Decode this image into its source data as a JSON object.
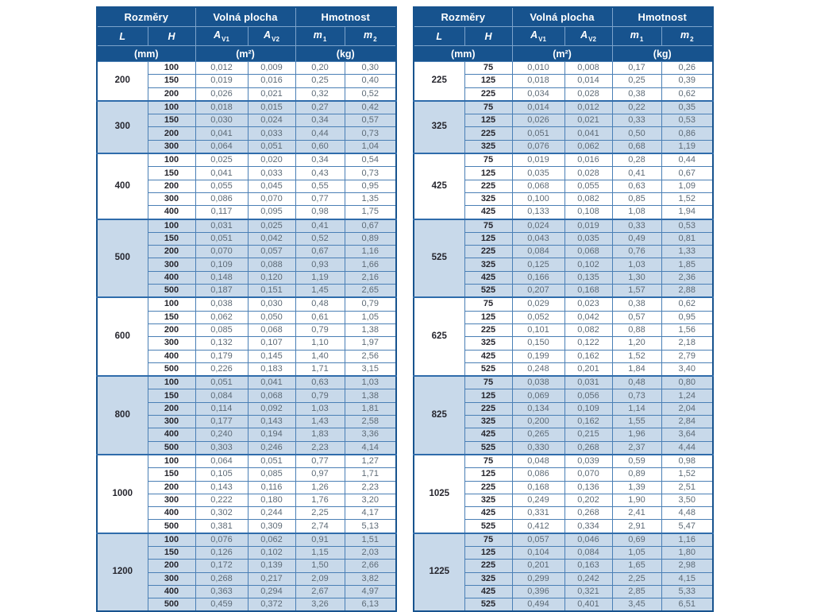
{
  "colors": {
    "page_bg": "#ffffff",
    "header_bg": "#17538e",
    "header_text": "#ffffff",
    "header_divider": "#7ca3cb",
    "row_shaded_bg": "#c8d9ea",
    "cell_border": "#4a7fb5",
    "group_border": "#2f6cab",
    "value_text": "#5d6a76",
    "label_text": "#26262e"
  },
  "header": {
    "groups": [
      {
        "label": "Rozměry",
        "span": 2
      },
      {
        "label": "Volná plocha",
        "span": 2
      },
      {
        "label": "Hmotnost",
        "span": 2
      }
    ],
    "columns": [
      {
        "base": "L",
        "sub": ""
      },
      {
        "base": "H",
        "sub": ""
      },
      {
        "base": "A",
        "sub": "V1"
      },
      {
        "base": "A",
        "sub": "V2"
      },
      {
        "base": "m",
        "sub": "1"
      },
      {
        "base": "m",
        "sub": "2"
      }
    ],
    "units": [
      {
        "label": "(mm)",
        "span": 2
      },
      {
        "label": "(m²)",
        "span": 2
      },
      {
        "label": "(kg)",
        "span": 2
      }
    ]
  },
  "tables": [
    {
      "name": "left",
      "groups": [
        {
          "l": "200",
          "rows": [
            [
              "100",
              "0,012",
              "0,009",
              "0,20",
              "0,30"
            ],
            [
              "150",
              "0,019",
              "0,016",
              "0,25",
              "0,40"
            ],
            [
              "200",
              "0,026",
              "0,021",
              "0,32",
              "0,52"
            ]
          ]
        },
        {
          "l": "300",
          "rows": [
            [
              "100",
              "0,018",
              "0,015",
              "0,27",
              "0,42"
            ],
            [
              "150",
              "0,030",
              "0,024",
              "0,34",
              "0,57"
            ],
            [
              "200",
              "0,041",
              "0,033",
              "0,44",
              "0,73"
            ],
            [
              "300",
              "0,064",
              "0,051",
              "0,60",
              "1,04"
            ]
          ]
        },
        {
          "l": "400",
          "rows": [
            [
              "100",
              "0,025",
              "0,020",
              "0,34",
              "0,54"
            ],
            [
              "150",
              "0,041",
              "0,033",
              "0,43",
              "0,73"
            ],
            [
              "200",
              "0,055",
              "0,045",
              "0,55",
              "0,95"
            ],
            [
              "300",
              "0,086",
              "0,070",
              "0,77",
              "1,35"
            ],
            [
              "400",
              "0,117",
              "0,095",
              "0,98",
              "1,75"
            ]
          ]
        },
        {
          "l": "500",
          "rows": [
            [
              "100",
              "0,031",
              "0,025",
              "0,41",
              "0,67"
            ],
            [
              "150",
              "0,051",
              "0,042",
              "0,52",
              "0,89"
            ],
            [
              "200",
              "0,070",
              "0,057",
              "0,67",
              "1,16"
            ],
            [
              "300",
              "0,109",
              "0,088",
              "0,93",
              "1,66"
            ],
            [
              "400",
              "0,148",
              "0,120",
              "1,19",
              "2,16"
            ],
            [
              "500",
              "0,187",
              "0,151",
              "1,45",
              "2,65"
            ]
          ]
        },
        {
          "l": "600",
          "rows": [
            [
              "100",
              "0,038",
              "0,030",
              "0,48",
              "0,79"
            ],
            [
              "150",
              "0,062",
              "0,050",
              "0,61",
              "1,05"
            ],
            [
              "200",
              "0,085",
              "0,068",
              "0,79",
              "1,38"
            ],
            [
              "300",
              "0,132",
              "0,107",
              "1,10",
              "1,97"
            ],
            [
              "400",
              "0,179",
              "0,145",
              "1,40",
              "2,56"
            ],
            [
              "500",
              "0,226",
              "0,183",
              "1,71",
              "3,15"
            ]
          ]
        },
        {
          "l": "800",
          "rows": [
            [
              "100",
              "0,051",
              "0,041",
              "0,63",
              "1,03"
            ],
            [
              "150",
              "0,084",
              "0,068",
              "0,79",
              "1,38"
            ],
            [
              "200",
              "0,114",
              "0,092",
              "1,03",
              "1,81"
            ],
            [
              "300",
              "0,177",
              "0,143",
              "1,43",
              "2,58"
            ],
            [
              "400",
              "0,240",
              "0,194",
              "1,83",
              "3,36"
            ],
            [
              "500",
              "0,303",
              "0,246",
              "2,23",
              "4,14"
            ]
          ]
        },
        {
          "l": "1000",
          "rows": [
            [
              "100",
              "0,064",
              "0,051",
              "0,77",
              "1,27"
            ],
            [
              "150",
              "0,105",
              "0,085",
              "0,97",
              "1,71"
            ],
            [
              "200",
              "0,143",
              "0,116",
              "1,26",
              "2,23"
            ],
            [
              "300",
              "0,222",
              "0,180",
              "1,76",
              "3,20"
            ],
            [
              "400",
              "0,302",
              "0,244",
              "2,25",
              "4,17"
            ],
            [
              "500",
              "0,381",
              "0,309",
              "2,74",
              "5,13"
            ]
          ]
        },
        {
          "l": "1200",
          "rows": [
            [
              "100",
              "0,076",
              "0,062",
              "0,91",
              "1,51"
            ],
            [
              "150",
              "0,126",
              "0,102",
              "1,15",
              "2,03"
            ],
            [
              "200",
              "0,172",
              "0,139",
              "1,50",
              "2,66"
            ],
            [
              "300",
              "0,268",
              "0,217",
              "2,09",
              "3,82"
            ],
            [
              "400",
              "0,363",
              "0,294",
              "2,67",
              "4,97"
            ],
            [
              "500",
              "0,459",
              "0,372",
              "3,26",
              "6,13"
            ]
          ]
        }
      ]
    },
    {
      "name": "right",
      "groups": [
        {
          "l": "225",
          "rows": [
            [
              "75",
              "0,010",
              "0,008",
              "0,17",
              "0,26"
            ],
            [
              "125",
              "0,018",
              "0,014",
              "0,25",
              "0,39"
            ],
            [
              "225",
              "0,034",
              "0,028",
              "0,38",
              "0,62"
            ]
          ]
        },
        {
          "l": "325",
          "rows": [
            [
              "75",
              "0,014",
              "0,012",
              "0,22",
              "0,35"
            ],
            [
              "125",
              "0,026",
              "0,021",
              "0,33",
              "0,53"
            ],
            [
              "225",
              "0,051",
              "0,041",
              "0,50",
              "0,86"
            ],
            [
              "325",
              "0,076",
              "0,062",
              "0,68",
              "1,19"
            ]
          ]
        },
        {
          "l": "425",
          "rows": [
            [
              "75",
              "0,019",
              "0,016",
              "0,28",
              "0,44"
            ],
            [
              "125",
              "0,035",
              "0,028",
              "0,41",
              "0,67"
            ],
            [
              "225",
              "0,068",
              "0,055",
              "0,63",
              "1,09"
            ],
            [
              "325",
              "0,100",
              "0,082",
              "0,85",
              "1,52"
            ],
            [
              "425",
              "0,133",
              "0,108",
              "1,08",
              "1,94"
            ]
          ]
        },
        {
          "l": "525",
          "rows": [
            [
              "75",
              "0,024",
              "0,019",
              "0,33",
              "0,53"
            ],
            [
              "125",
              "0,043",
              "0,035",
              "0,49",
              "0,81"
            ],
            [
              "225",
              "0,084",
              "0,068",
              "0,76",
              "1,33"
            ],
            [
              "325",
              "0,125",
              "0,102",
              "1,03",
              "1,85"
            ],
            [
              "425",
              "0,166",
              "0,135",
              "1,30",
              "2,36"
            ],
            [
              "525",
              "0,207",
              "0,168",
              "1,57",
              "2,88"
            ]
          ]
        },
        {
          "l": "625",
          "rows": [
            [
              "75",
              "0,029",
              "0,023",
              "0,38",
              "0,62"
            ],
            [
              "125",
              "0,052",
              "0,042",
              "0,57",
              "0,95"
            ],
            [
              "225",
              "0,101",
              "0,082",
              "0,88",
              "1,56"
            ],
            [
              "325",
              "0,150",
              "0,122",
              "1,20",
              "2,18"
            ],
            [
              "425",
              "0,199",
              "0,162",
              "1,52",
              "2,79"
            ],
            [
              "525",
              "0,248",
              "0,201",
              "1,84",
              "3,40"
            ]
          ]
        },
        {
          "l": "825",
          "rows": [
            [
              "75",
              "0,038",
              "0,031",
              "0,48",
              "0,80"
            ],
            [
              "125",
              "0,069",
              "0,056",
              "0,73",
              "1,24"
            ],
            [
              "225",
              "0,134",
              "0,109",
              "1,14",
              "2,04"
            ],
            [
              "325",
              "0,200",
              "0,162",
              "1,55",
              "2,84"
            ],
            [
              "425",
              "0,265",
              "0,215",
              "1,96",
              "3,64"
            ],
            [
              "525",
              "0,330",
              "0,268",
              "2,37",
              "4,44"
            ]
          ]
        },
        {
          "l": "1025",
          "rows": [
            [
              "75",
              "0,048",
              "0,039",
              "0,59",
              "0,98"
            ],
            [
              "125",
              "0,086",
              "0,070",
              "0,89",
              "1,52"
            ],
            [
              "225",
              "0,168",
              "0,136",
              "1,39",
              "2,51"
            ],
            [
              "325",
              "0,249",
              "0,202",
              "1,90",
              "3,50"
            ],
            [
              "425",
              "0,331",
              "0,268",
              "2,41",
              "4,48"
            ],
            [
              "525",
              "0,412",
              "0,334",
              "2,91",
              "5,47"
            ]
          ]
        },
        {
          "l": "1225",
          "rows": [
            [
              "75",
              "0,057",
              "0,046",
              "0,69",
              "1,16"
            ],
            [
              "125",
              "0,104",
              "0,084",
              "1,05",
              "1,80"
            ],
            [
              "225",
              "0,201",
              "0,163",
              "1,65",
              "2,98"
            ],
            [
              "325",
              "0,299",
              "0,242",
              "2,25",
              "4,15"
            ],
            [
              "425",
              "0,396",
              "0,321",
              "2,85",
              "5,33"
            ],
            [
              "525",
              "0,494",
              "0,401",
              "3,45",
              "6,51"
            ]
          ]
        }
      ]
    }
  ]
}
